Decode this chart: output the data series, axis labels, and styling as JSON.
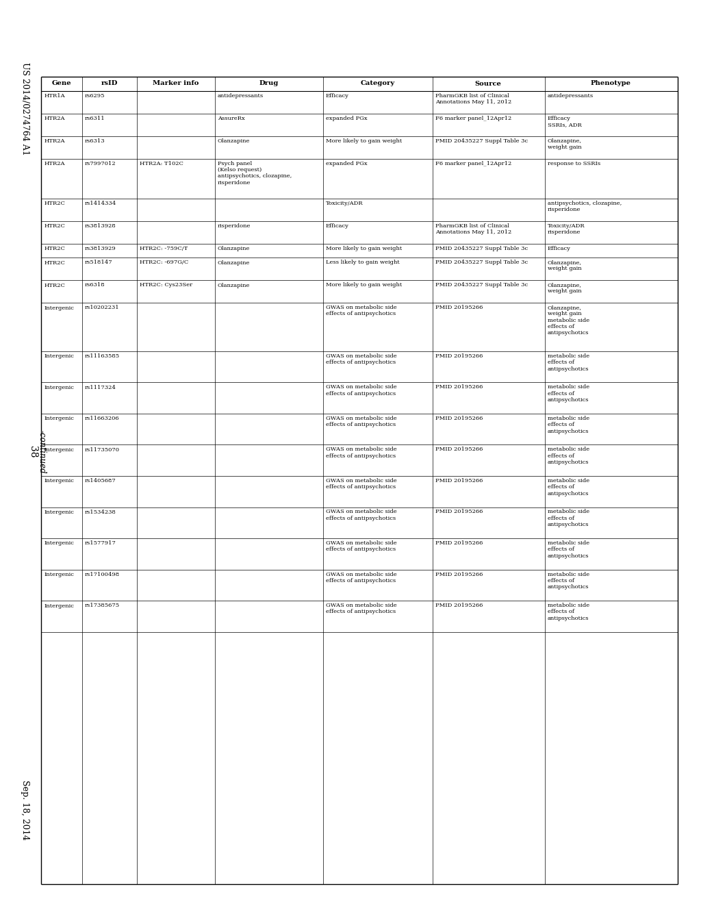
{
  "header_left": "US 2014/0274764 A1",
  "header_right": "Sep. 18, 2014",
  "page_number": "38",
  "continued_label": "-continued",
  "columns": [
    "Gene",
    "rsID",
    "Marker info",
    "Drug",
    "Category",
    "Source",
    "Phenotype"
  ],
  "rows": [
    {
      "gene": "HTR1A",
      "rsid": "rs6295",
      "marker": "",
      "drug": "antidepressants",
      "category": "Efficacy",
      "source": "PharmGKB list of Clinical\nAnnotations May 11, 2012",
      "phenotype": "antidepressants"
    },
    {
      "gene": "HTR2A",
      "rsid": "rs6311",
      "marker": "",
      "drug": "AssureRx",
      "category": "expanded PGx",
      "source": "F6 marker panel_12Apr12",
      "phenotype": "Efficacy\nSSRIs, ADR"
    },
    {
      "gene": "HTR2A",
      "rsid": "rs6313",
      "marker": "",
      "drug": "Olanzapine",
      "category": "More likely to gain weight",
      "source": "PMID 20435227 Suppl Table 3c",
      "phenotype": "Olanzapine,\nweight gain"
    },
    {
      "gene": "HTR2A",
      "rsid": "rs7997012",
      "marker": "HTR2A: T102C",
      "drug": "Psych panel\n(Kelso request)\nantipsychotics, clozapine,\nrisperidone",
      "category": "expanded PGx",
      "source": "F6 marker panel_12Apr12",
      "phenotype": "response to SSRIs"
    },
    {
      "gene": "HTR2C",
      "rsid": "rs1414334",
      "marker": "",
      "drug": "",
      "category": "Toxicity/ADR",
      "source": "",
      "phenotype": "antipsychotics, clozapine,\nrisperidone"
    },
    {
      "gene": "HTR2C",
      "rsid": "rs3813928",
      "marker": "",
      "drug": "risperidone",
      "category": "Efficacy",
      "source": "PharmGKB list of Clinical\nAnnotations May 11, 2012",
      "phenotype": "Toxicity/ADR\nrisperidone"
    },
    {
      "gene": "HTR2C",
      "rsid": "rs3813929",
      "marker": "HTR2C: -759C/T",
      "drug": "Olanzapine",
      "category": "More likely to gain weight",
      "source": "PMID 20435227 Suppl Table 3c",
      "phenotype": "Efficacy"
    },
    {
      "gene": "HTR2C",
      "rsid": "rs518147",
      "marker": "HTR2C: -697G/C",
      "drug": "Olanzapine",
      "category": "Less likely to gain weight",
      "source": "PMID 20435227 Suppl Table 3c",
      "phenotype": "Olanzapine,\nweight gain"
    },
    {
      "gene": "HTR2C",
      "rsid": "rs6318",
      "marker": "HTR2C: Cys23Ser",
      "drug": "Olanzapine",
      "category": "More likely to gain weight",
      "source": "PMID 20435227 Suppl Table 3c",
      "phenotype": "Olanzapine,\nweight gain"
    },
    {
      "gene": "Intergenic",
      "rsid": "rs10202231",
      "marker": "",
      "drug": "",
      "category": "GWAS on metabolic side\neffects of antipsychotics",
      "source": "PMID 20195266",
      "phenotype": "Olanzapine,\nweight gain\nmetabolic side\neffects of\nantipsychotics"
    },
    {
      "gene": "Intergenic",
      "rsid": "rs11163585",
      "marker": "",
      "drug": "",
      "category": "GWAS on metabolic side\neffects of antipsychotics",
      "source": "PMID 20195266",
      "phenotype": "metabolic side\neffects of\nantipsychotics"
    },
    {
      "gene": "Intergenic",
      "rsid": "rs1117324",
      "marker": "",
      "drug": "",
      "category": "GWAS on metabolic side\neffects of antipsychotics",
      "source": "PMID 20195266",
      "phenotype": "metabolic side\neffects of\nantipsychotics"
    },
    {
      "gene": "Intergenic",
      "rsid": "rs11663206",
      "marker": "",
      "drug": "",
      "category": "GWAS on metabolic side\neffects of antipsychotics",
      "source": "PMID 20195266",
      "phenotype": "metabolic side\neffects of\nantipsychotics"
    },
    {
      "gene": "Intergenic",
      "rsid": "rs11735070",
      "marker": "",
      "drug": "",
      "category": "GWAS on metabolic side\neffects of antipsychotics",
      "source": "PMID 20195266",
      "phenotype": "metabolic side\neffects of\nantipsychotics"
    },
    {
      "gene": "Intergenic",
      "rsid": "rs1405687",
      "marker": "",
      "drug": "",
      "category": "GWAS on metabolic side\neffects of antipsychotics",
      "source": "PMID 20195266",
      "phenotype": "metabolic side\neffects of\nantipsychotics"
    },
    {
      "gene": "Intergenic",
      "rsid": "rs1534238",
      "marker": "",
      "drug": "",
      "category": "GWAS on metabolic side\neffects of antipsychotics",
      "source": "PMID 20195266",
      "phenotype": "metabolic side\neffects of\nantipsychotics"
    },
    {
      "gene": "Intergenic",
      "rsid": "rs1577917",
      "marker": "",
      "drug": "",
      "category": "GWAS on metabolic side\neffects of antipsychotics",
      "source": "PMID 20195266",
      "phenotype": "metabolic side\neffects of\nantipsychotics"
    },
    {
      "gene": "Intergenic",
      "rsid": "rs17100498",
      "marker": "",
      "drug": "",
      "category": "GWAS on metabolic side\neffects of antipsychotics",
      "source": "PMID 20195266",
      "phenotype": "metabolic side\neffects of\nantipsychotics"
    },
    {
      "gene": "Intergenic",
      "rsid": "rs17385675",
      "marker": "",
      "drug": "",
      "category": "GWAS on metabolic side\neffects of antipsychotics",
      "source": "PMID 20195266",
      "phenotype": "metabolic side\neffects of\nantipsychotics"
    }
  ]
}
